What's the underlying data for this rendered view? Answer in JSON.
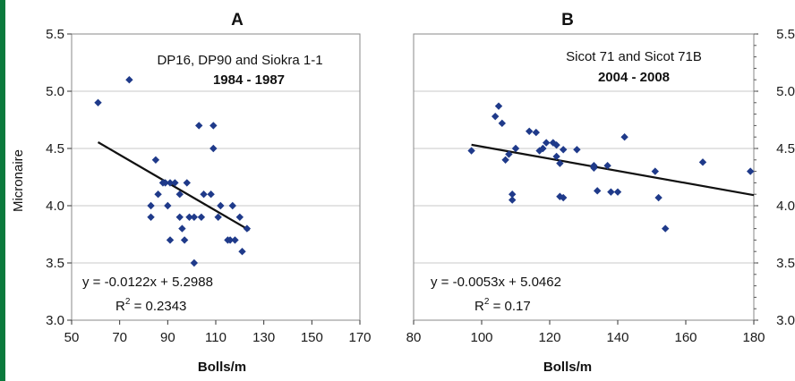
{
  "chart_data": [
    {
      "type": "scatter",
      "title": "A",
      "legend_line1": "DP16, DP90 and Siokra 1-1",
      "legend_line2": "1984 - 1987",
      "xlabel": "Bolls/m",
      "ylabel": "Micronaire",
      "xlim": [
        50,
        170
      ],
      "ylim": [
        3.0,
        5.5
      ],
      "xticks": [
        50,
        70,
        90,
        110,
        130,
        150,
        170
      ],
      "yticks": [
        3.0,
        3.5,
        4.0,
        4.5,
        5.0,
        5.5
      ],
      "ytick_labels": [
        "3.0",
        "3.5",
        "4.0",
        "4.5",
        "5.0",
        "5.5"
      ],
      "grid": "horizontal",
      "equation": "y = -0.0122x + 5.2988",
      "r2_label": "R",
      "r2_exp": "2",
      "r2_value": " = 0.2343",
      "trend": {
        "slope": -0.0122,
        "intercept": 5.2988,
        "x_range": [
          61,
          124
        ]
      },
      "points": [
        {
          "x": 61,
          "y": 4.9
        },
        {
          "x": 74,
          "y": 5.1
        },
        {
          "x": 83,
          "y": 4.0
        },
        {
          "x": 83,
          "y": 3.9
        },
        {
          "x": 85,
          "y": 4.4
        },
        {
          "x": 86,
          "y": 4.1
        },
        {
          "x": 88,
          "y": 4.2
        },
        {
          "x": 89,
          "y": 4.2
        },
        {
          "x": 90,
          "y": 4.0
        },
        {
          "x": 91,
          "y": 3.7
        },
        {
          "x": 91,
          "y": 4.2
        },
        {
          "x": 93,
          "y": 4.2
        },
        {
          "x": 95,
          "y": 4.1
        },
        {
          "x": 95,
          "y": 3.9
        },
        {
          "x": 96,
          "y": 3.8
        },
        {
          "x": 97,
          "y": 3.7
        },
        {
          "x": 98,
          "y": 4.2
        },
        {
          "x": 99,
          "y": 3.9
        },
        {
          "x": 101,
          "y": 3.9
        },
        {
          "x": 101,
          "y": 3.5
        },
        {
          "x": 103,
          "y": 4.7
        },
        {
          "x": 104,
          "y": 3.9
        },
        {
          "x": 105,
          "y": 4.1
        },
        {
          "x": 108,
          "y": 4.1
        },
        {
          "x": 109,
          "y": 4.7
        },
        {
          "x": 109,
          "y": 4.5
        },
        {
          "x": 111,
          "y": 3.9
        },
        {
          "x": 112,
          "y": 4.0
        },
        {
          "x": 115,
          "y": 3.7
        },
        {
          "x": 116,
          "y": 3.7
        },
        {
          "x": 117,
          "y": 4.0
        },
        {
          "x": 118,
          "y": 3.7
        },
        {
          "x": 120,
          "y": 3.9
        },
        {
          "x": 121,
          "y": 3.6
        },
        {
          "x": 123,
          "y": 3.8
        }
      ]
    },
    {
      "type": "scatter",
      "title": "B",
      "legend_line1": "Sicot 71 and Sicot 71B",
      "legend_line2": "2004 - 2008",
      "xlabel": "Bolls/m",
      "ylabel": "",
      "xlim": [
        80,
        180
      ],
      "ylim": [
        3.0,
        5.5
      ],
      "xticks": [
        80,
        100,
        120,
        140,
        160,
        180
      ],
      "yticks": [
        3.0,
        3.5,
        4.0,
        4.5,
        5.0,
        5.5
      ],
      "ytick_labels": [
        "3.0",
        "3.5",
        "4.0",
        "4.5",
        "5.0",
        "5.5"
      ],
      "grid": "horizontal",
      "equation": "y = -0.0053x + 5.0462",
      "r2_label": "R",
      "r2_exp": "2",
      "r2_value": " = 0.17",
      "trend": {
        "slope": -0.0053,
        "intercept": 5.0462,
        "x_range": [
          97,
          180
        ]
      },
      "points": [
        {
          "x": 97,
          "y": 4.48
        },
        {
          "x": 104,
          "y": 4.78
        },
        {
          "x": 105,
          "y": 4.87
        },
        {
          "x": 106,
          "y": 4.72
        },
        {
          "x": 107,
          "y": 4.4
        },
        {
          "x": 108,
          "y": 4.45
        },
        {
          "x": 109,
          "y": 4.05
        },
        {
          "x": 109,
          "y": 4.1
        },
        {
          "x": 110,
          "y": 4.5
        },
        {
          "x": 114,
          "y": 4.65
        },
        {
          "x": 116,
          "y": 4.64
        },
        {
          "x": 117,
          "y": 4.48
        },
        {
          "x": 118,
          "y": 4.5
        },
        {
          "x": 119,
          "y": 4.55
        },
        {
          "x": 121,
          "y": 4.55
        },
        {
          "x": 122,
          "y": 4.53
        },
        {
          "x": 122,
          "y": 4.43
        },
        {
          "x": 123,
          "y": 4.37
        },
        {
          "x": 123,
          "y": 4.08
        },
        {
          "x": 124,
          "y": 4.49
        },
        {
          "x": 124,
          "y": 4.07
        },
        {
          "x": 128,
          "y": 4.49
        },
        {
          "x": 133,
          "y": 4.35
        },
        {
          "x": 133,
          "y": 4.33
        },
        {
          "x": 134,
          "y": 4.13
        },
        {
          "x": 137,
          "y": 4.35
        },
        {
          "x": 138,
          "y": 4.12
        },
        {
          "x": 140,
          "y": 4.12
        },
        {
          "x": 142,
          "y": 4.6
        },
        {
          "x": 151,
          "y": 4.3
        },
        {
          "x": 152,
          "y": 4.07
        },
        {
          "x": 154,
          "y": 3.8
        },
        {
          "x": 165,
          "y": 4.38
        },
        {
          "x": 179,
          "y": 4.3
        }
      ]
    }
  ]
}
